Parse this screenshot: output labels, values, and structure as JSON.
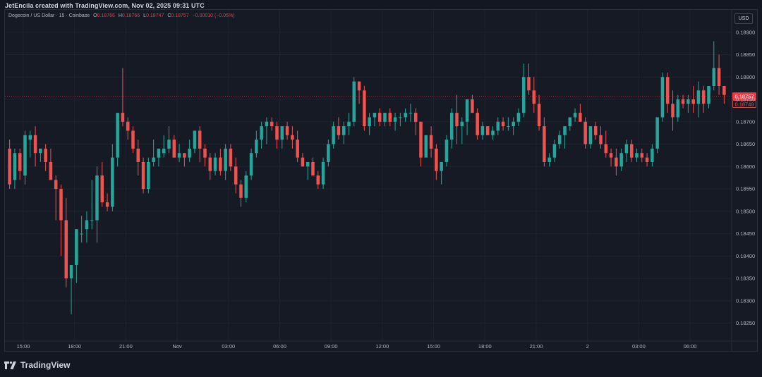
{
  "header": {
    "created_note": "JetEncila created with TradingView.com, Nov 02, 2025 09:31 UTC"
  },
  "legend": {
    "symbol": "Dogecoin / US Dollar · 15 · Coinbase",
    "o_label": "O",
    "o_value": "0.18766",
    "h_label": "H",
    "h_value": "0.18766",
    "l_label": "L",
    "l_value": "0.18747",
    "c_label": "C",
    "c_value": "0.18757",
    "change": "−0.00010 (−0.05%)"
  },
  "currency_button": "USD",
  "brand": {
    "name": "TradingView",
    "icon": "tradingview-logo-icon"
  },
  "colors": {
    "up": "#26a69a",
    "down": "#ef5350",
    "background": "#161a25",
    "grid": "#1f2330",
    "axis_text": "#b2b5be",
    "last_price_tag": "#f23645",
    "prev_tag_border": "#ef5350"
  },
  "chart_data": {
    "type": "candlestick",
    "title": "Dogecoin / US Dollar · 15 · Coinbase",
    "interval": "15",
    "exchange": "Coinbase",
    "currency": "USD",
    "y_ticks": [
      "0.18900",
      "0.18850",
      "0.18800",
      "0.18750",
      "0.18700",
      "0.18650",
      "0.18600",
      "0.18550",
      "0.18500",
      "0.18450",
      "0.18400",
      "0.18350",
      "0.18300",
      "0.18250"
    ],
    "ylim": [
      0.1821,
      0.1895
    ],
    "x_ticks": [
      "15:00",
      "18:00",
      "21:00",
      "Nov",
      "03:00",
      "06:00",
      "09:00",
      "12:00",
      "15:00",
      "18:00",
      "21:00",
      "2",
      "03:00",
      "06:00"
    ],
    "last_price": "0.18757",
    "secondary_price_label": "0.18749",
    "grid": true,
    "candles": [
      [
        0.1864,
        0.1866,
        0.1855,
        0.1856
      ],
      [
        0.1857,
        0.1864,
        0.1855,
        0.1863
      ],
      [
        0.1863,
        0.1864,
        0.1857,
        0.1859
      ],
      [
        0.1858,
        0.1868,
        0.1856,
        0.1867
      ],
      [
        0.1866,
        0.1868,
        0.1862,
        0.1867
      ],
      [
        0.1867,
        0.1869,
        0.186,
        0.1863
      ],
      [
        0.1863,
        0.1864,
        0.1861,
        0.1864
      ],
      [
        0.1864,
        0.1865,
        0.1859,
        0.1861
      ],
      [
        0.1861,
        0.1864,
        0.1857,
        0.1857
      ],
      [
        0.1857,
        0.1858,
        0.1848,
        0.1855
      ],
      [
        0.1855,
        0.1856,
        0.184,
        0.1848
      ],
      [
        0.1848,
        0.1853,
        0.1833,
        0.1835
      ],
      [
        0.1835,
        0.1838,
        0.1827,
        0.1838
      ],
      [
        0.1838,
        0.1846,
        0.1834,
        0.1846
      ],
      [
        0.1845,
        0.1849,
        0.1843,
        0.1845
      ],
      [
        0.1846,
        0.185,
        0.1843,
        0.1848
      ],
      [
        0.1848,
        0.1857,
        0.1846,
        0.1848
      ],
      [
        0.1848,
        0.186,
        0.1843,
        0.1858
      ],
      [
        0.1858,
        0.1861,
        0.1851,
        0.1852
      ],
      [
        0.1852,
        0.1854,
        0.185,
        0.1851
      ],
      [
        0.1851,
        0.1865,
        0.185,
        0.1862
      ],
      [
        0.1862,
        0.1872,
        0.186,
        0.1872
      ],
      [
        0.1872,
        0.1882,
        0.1869,
        0.187
      ],
      [
        0.187,
        0.1871,
        0.1866,
        0.1868
      ],
      [
        0.1868,
        0.1869,
        0.1863,
        0.1864
      ],
      [
        0.1864,
        0.1866,
        0.1858,
        0.1861
      ],
      [
        0.1861,
        0.1862,
        0.1854,
        0.1855
      ],
      [
        0.1855,
        0.1862,
        0.1854,
        0.1861
      ],
      [
        0.1861,
        0.1866,
        0.186,
        0.1862
      ],
      [
        0.1862,
        0.1864,
        0.186,
        0.1864
      ],
      [
        0.1863,
        0.1867,
        0.1862,
        0.1864
      ],
      [
        0.1864,
        0.1869,
        0.1863,
        0.1866
      ],
      [
        0.1866,
        0.1867,
        0.1862,
        0.1862
      ],
      [
        0.1862,
        0.1865,
        0.1861,
        0.1863
      ],
      [
        0.1863,
        0.1863,
        0.186,
        0.1862
      ],
      [
        0.1862,
        0.1866,
        0.1861,
        0.1864
      ],
      [
        0.1864,
        0.1868,
        0.1863,
        0.1868
      ],
      [
        0.1868,
        0.1869,
        0.1861,
        0.1864
      ],
      [
        0.1864,
        0.1865,
        0.186,
        0.1862
      ],
      [
        0.1862,
        0.1863,
        0.1857,
        0.1859
      ],
      [
        0.1859,
        0.1863,
        0.1858,
        0.1862
      ],
      [
        0.1862,
        0.1864,
        0.1858,
        0.1859
      ],
      [
        0.1859,
        0.1865,
        0.1857,
        0.1864
      ],
      [
        0.1864,
        0.1865,
        0.1859,
        0.186
      ],
      [
        0.186,
        0.1862,
        0.1854,
        0.1856
      ],
      [
        0.1856,
        0.1857,
        0.1851,
        0.1853
      ],
      [
        0.1853,
        0.1859,
        0.1852,
        0.1858
      ],
      [
        0.1858,
        0.1864,
        0.1857,
        0.1863
      ],
      [
        0.1863,
        0.1868,
        0.1862,
        0.1866
      ],
      [
        0.1866,
        0.187,
        0.1864,
        0.1869
      ],
      [
        0.1869,
        0.1871,
        0.1865,
        0.187
      ],
      [
        0.187,
        0.1871,
        0.1868,
        0.1869
      ],
      [
        0.1869,
        0.187,
        0.1864,
        0.1866
      ],
      [
        0.1866,
        0.1869,
        0.1864,
        0.1869
      ],
      [
        0.1869,
        0.187,
        0.1866,
        0.1867
      ],
      [
        0.1867,
        0.1869,
        0.1864,
        0.1866
      ],
      [
        0.1866,
        0.1868,
        0.1861,
        0.1862
      ],
      [
        0.1862,
        0.1863,
        0.186,
        0.186
      ],
      [
        0.186,
        0.1861,
        0.1857,
        0.1861
      ],
      [
        0.1861,
        0.1862,
        0.1858,
        0.1858
      ],
      [
        0.1858,
        0.1859,
        0.1855,
        0.1856
      ],
      [
        0.1856,
        0.1862,
        0.1855,
        0.1861
      ],
      [
        0.1861,
        0.1866,
        0.186,
        0.1865
      ],
      [
        0.1865,
        0.187,
        0.1864,
        0.1869
      ],
      [
        0.1869,
        0.1871,
        0.1866,
        0.1867
      ],
      [
        0.1867,
        0.187,
        0.1865,
        0.1869
      ],
      [
        0.1869,
        0.1872,
        0.1867,
        0.187
      ],
      [
        0.187,
        0.188,
        0.1869,
        0.1879
      ],
      [
        0.1879,
        0.1879,
        0.1874,
        0.1877
      ],
      [
        0.1877,
        0.1878,
        0.1868,
        0.1869
      ],
      [
        0.1869,
        0.1872,
        0.1867,
        0.1871
      ],
      [
        0.1871,
        0.1872,
        0.1869,
        0.1872
      ],
      [
        0.1872,
        0.1873,
        0.1869,
        0.187
      ],
      [
        0.187,
        0.1872,
        0.1869,
        0.1872
      ],
      [
        0.1872,
        0.1873,
        0.1869,
        0.187
      ],
      [
        0.187,
        0.1872,
        0.1868,
        0.1871
      ],
      [
        0.1871,
        0.1872,
        0.1869,
        0.1871
      ],
      [
        0.1871,
        0.1873,
        0.187,
        0.1872
      ],
      [
        0.1872,
        0.1874,
        0.187,
        0.1872
      ],
      [
        0.1872,
        0.1873,
        0.1867,
        0.187
      ],
      [
        0.187,
        0.187,
        0.186,
        0.1862
      ],
      [
        0.1862,
        0.1867,
        0.1862,
        0.1867
      ],
      [
        0.1867,
        0.1869,
        0.1862,
        0.1864
      ],
      [
        0.1864,
        0.1865,
        0.1857,
        0.1859
      ],
      [
        0.1859,
        0.1861,
        0.1856,
        0.1861
      ],
      [
        0.1861,
        0.1867,
        0.186,
        0.1866
      ],
      [
        0.1866,
        0.1873,
        0.1864,
        0.1872
      ],
      [
        0.1872,
        0.1876,
        0.1865,
        0.1869
      ],
      [
        0.1869,
        0.1871,
        0.1865,
        0.187
      ],
      [
        0.187,
        0.1875,
        0.1867,
        0.1875
      ],
      [
        0.1875,
        0.1876,
        0.1872,
        0.1872
      ],
      [
        0.1872,
        0.1873,
        0.1866,
        0.1867
      ],
      [
        0.1867,
        0.187,
        0.1866,
        0.1869
      ],
      [
        0.1869,
        0.1869,
        0.1867,
        0.1867
      ],
      [
        0.1867,
        0.1869,
        0.1866,
        0.1868
      ],
      [
        0.1868,
        0.1871,
        0.1867,
        0.187
      ],
      [
        0.187,
        0.1871,
        0.1868,
        0.1869
      ],
      [
        0.1869,
        0.1871,
        0.1868,
        0.1869
      ],
      [
        0.1869,
        0.1871,
        0.1867,
        0.187
      ],
      [
        0.187,
        0.1873,
        0.1869,
        0.1872
      ],
      [
        0.1872,
        0.1883,
        0.1871,
        0.188
      ],
      [
        0.188,
        0.1883,
        0.1876,
        0.1877
      ],
      [
        0.1877,
        0.188,
        0.1872,
        0.1874
      ],
      [
        0.1874,
        0.1876,
        0.1868,
        0.1869
      ],
      [
        0.1869,
        0.1871,
        0.186,
        0.1861
      ],
      [
        0.1861,
        0.1863,
        0.186,
        0.1862
      ],
      [
        0.1862,
        0.1866,
        0.1861,
        0.1865
      ],
      [
        0.1865,
        0.1868,
        0.1864,
        0.1867
      ],
      [
        0.1867,
        0.1869,
        0.1864,
        0.1869
      ],
      [
        0.1869,
        0.1871,
        0.1868,
        0.1871
      ],
      [
        0.1871,
        0.1873,
        0.187,
        0.1872
      ],
      [
        0.1872,
        0.1874,
        0.187,
        0.187
      ],
      [
        0.187,
        0.1871,
        0.1864,
        0.1865
      ],
      [
        0.1865,
        0.1869,
        0.1864,
        0.1869
      ],
      [
        0.1869,
        0.187,
        0.1866,
        0.1867
      ],
      [
        0.1867,
        0.1869,
        0.1864,
        0.1865
      ],
      [
        0.1865,
        0.1868,
        0.1862,
        0.1863
      ],
      [
        0.1863,
        0.1864,
        0.186,
        0.1862
      ],
      [
        0.1862,
        0.1864,
        0.1858,
        0.186
      ],
      [
        0.186,
        0.1864,
        0.1859,
        0.1863
      ],
      [
        0.1863,
        0.1866,
        0.1861,
        0.1865
      ],
      [
        0.1865,
        0.1866,
        0.1861,
        0.1862
      ],
      [
        0.1862,
        0.1864,
        0.1861,
        0.1863
      ],
      [
        0.1863,
        0.1864,
        0.1861,
        0.1862
      ],
      [
        0.1862,
        0.1863,
        0.186,
        0.1861
      ],
      [
        0.1861,
        0.1865,
        0.186,
        0.1864
      ],
      [
        0.1864,
        0.1871,
        0.1863,
        0.1871
      ],
      [
        0.1871,
        0.1881,
        0.187,
        0.188
      ],
      [
        0.188,
        0.1881,
        0.1872,
        0.1874
      ],
      [
        0.1874,
        0.1877,
        0.1868,
        0.1871
      ],
      [
        0.1871,
        0.1876,
        0.187,
        0.1875
      ],
      [
        0.1875,
        0.1876,
        0.1873,
        0.1874
      ],
      [
        0.1874,
        0.1876,
        0.1872,
        0.1875
      ],
      [
        0.1875,
        0.1878,
        0.1872,
        0.1874
      ],
      [
        0.1874,
        0.1879,
        0.1871,
        0.1877
      ],
      [
        0.1877,
        0.1878,
        0.1872,
        0.1874
      ],
      [
        0.1874,
        0.1878,
        0.1873,
        0.1878
      ],
      [
        0.1878,
        0.1888,
        0.1877,
        0.1882
      ],
      [
        0.1882,
        0.1885,
        0.1876,
        0.1878
      ],
      [
        0.1878,
        0.1878,
        0.1874,
        0.1876
      ]
    ]
  }
}
